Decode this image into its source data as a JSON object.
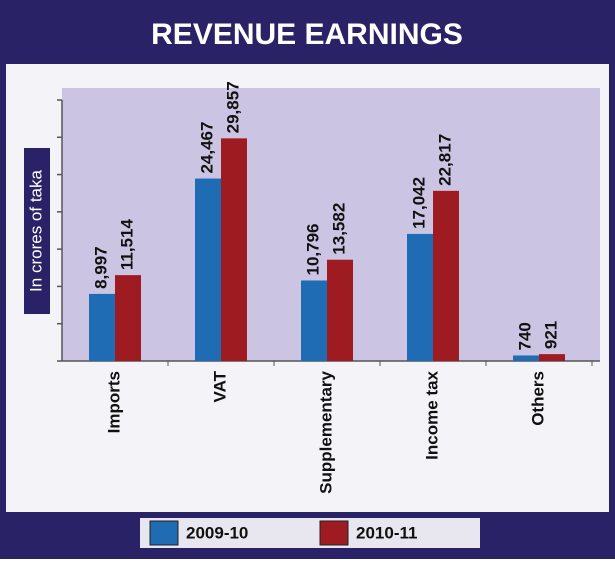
{
  "chart_data": {
    "type": "bar",
    "title": "REVENUE EARNINGS",
    "y_label": "In crores of taka",
    "categories": [
      "Imports",
      "VAT",
      "Supplementary",
      "Income tax",
      "Others"
    ],
    "series": [
      {
        "name": "2009-10",
        "color": "#1f6cb4",
        "values": [
          8997,
          24467,
          10796,
          17042,
          740
        ],
        "value_labels": [
          "8,997",
          "24,467",
          "10,796",
          "17,042",
          "740"
        ]
      },
      {
        "name": "2010-11",
        "color": "#9e1b22",
        "values": [
          11514,
          29857,
          13582,
          22817,
          921
        ],
        "value_labels": [
          "11,514",
          "29,857",
          "13,582",
          "22,817",
          "921"
        ]
      }
    ],
    "ylim": [
      0,
      35000
    ],
    "yticks": [
      0,
      5000,
      10000,
      15000,
      20000,
      25000,
      30000,
      35000
    ],
    "grid": false
  }
}
